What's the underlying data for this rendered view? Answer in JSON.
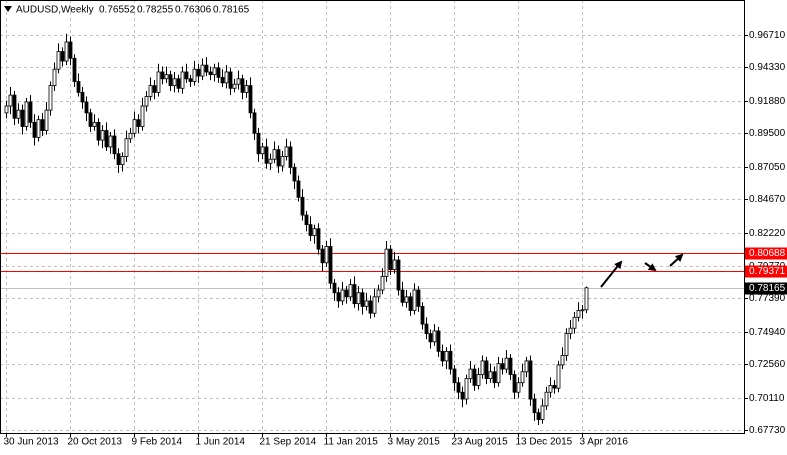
{
  "chart_data": {
    "type": "candlestick",
    "title": "AUDUSD,Weekly",
    "up_color": "#ffffff",
    "down_color": "#000000",
    "grid": true,
    "ylim": [
      0.6751,
      0.9928
    ],
    "yticks": [
      {
        "value": 0.9671,
        "label": "0.96710"
      },
      {
        "value": 0.9433,
        "label": "0.94330"
      },
      {
        "value": 0.9188,
        "label": "0.91880"
      },
      {
        "value": 0.895,
        "label": "0.89500"
      },
      {
        "value": 0.8705,
        "label": "0.87050"
      },
      {
        "value": 0.8467,
        "label": "0.84670"
      },
      {
        "value": 0.8222,
        "label": "0.82220"
      },
      {
        "value": 0.7977,
        "label": "0.79770"
      },
      {
        "value": 0.7739,
        "label": "0.77390"
      },
      {
        "value": 0.7494,
        "label": "0.74940"
      },
      {
        "value": 0.7256,
        "label": "0.72560"
      },
      {
        "value": 0.7011,
        "label": "0.70110"
      },
      {
        "value": 0.6773,
        "label": "0.67730"
      }
    ],
    "levels": [
      {
        "value": 0.80688,
        "color": "#ff0000"
      },
      {
        "value": 0.79371,
        "color": "#ff0000"
      }
    ],
    "categories": [
      "30 Jun 2013",
      null,
      null,
      null,
      null,
      null,
      null,
      null,
      null,
      null,
      null,
      null,
      null,
      null,
      null,
      null,
      "20 Oct 2013",
      null,
      null,
      null,
      null,
      null,
      null,
      null,
      null,
      null,
      null,
      null,
      null,
      null,
      null,
      null,
      "9 Feb 2014",
      null,
      null,
      null,
      null,
      null,
      null,
      null,
      null,
      null,
      null,
      null,
      null,
      null,
      null,
      null,
      "1 Jun 2014",
      null,
      null,
      null,
      null,
      null,
      null,
      null,
      null,
      null,
      null,
      null,
      null,
      null,
      null,
      null,
      "21 Sep 2014",
      null,
      null,
      null,
      null,
      null,
      null,
      null,
      null,
      null,
      null,
      null,
      null,
      null,
      null,
      null,
      "11 Jan 2015",
      null,
      null,
      null,
      null,
      null,
      null,
      null,
      null,
      null,
      null,
      null,
      null,
      null,
      null,
      null,
      "3 May 2015",
      null,
      null,
      null,
      null,
      null,
      null,
      null,
      null,
      null,
      null,
      null,
      null,
      null,
      null,
      null,
      "23 Aug 2015",
      null,
      null,
      null,
      null,
      null,
      null,
      null,
      null,
      null,
      null,
      null,
      null,
      null,
      null,
      null,
      "13 Dec 2015",
      null,
      null,
      null,
      null,
      null,
      null,
      null,
      null,
      null,
      null,
      null,
      null,
      null,
      null,
      null,
      "3 Apr 2016",
      null
    ],
    "open": [
      0.91,
      0.915,
      0.923,
      0.906,
      0.912,
      0.9,
      0.918,
      0.903,
      0.892,
      0.905,
      0.897,
      0.912,
      0.93,
      0.942,
      0.955,
      0.948,
      0.962,
      0.95,
      0.933,
      0.925,
      0.918,
      0.91,
      0.9,
      0.903,
      0.89,
      0.897,
      0.885,
      0.893,
      0.88,
      0.872,
      0.878,
      0.891,
      0.895,
      0.905,
      0.9,
      0.915,
      0.922,
      0.93,
      0.925,
      0.94,
      0.935,
      0.938,
      0.93,
      0.935,
      0.928,
      0.94,
      0.935,
      0.933,
      0.942,
      0.937,
      0.945,
      0.94,
      0.938,
      0.943,
      0.936,
      0.932,
      0.94,
      0.928,
      0.931,
      0.935,
      0.925,
      0.93,
      0.91,
      0.895,
      0.88,
      0.885,
      0.873,
      0.876,
      0.883,
      0.871,
      0.878,
      0.885,
      0.87,
      0.86,
      0.848,
      0.835,
      0.828,
      0.82,
      0.825,
      0.81,
      0.8,
      0.812,
      0.785,
      0.778,
      0.772,
      0.78,
      0.775,
      0.784,
      0.77,
      0.778,
      0.768,
      0.772,
      0.763,
      0.775,
      0.78,
      0.79,
      0.81,
      0.795,
      0.802,
      0.78,
      0.771,
      0.775,
      0.765,
      0.78,
      0.768,
      0.755,
      0.748,
      0.742,
      0.75,
      0.735,
      0.728,
      0.735,
      0.722,
      0.712,
      0.705,
      0.7,
      0.715,
      0.722,
      0.71,
      0.718,
      0.728,
      0.715,
      0.72,
      0.712,
      0.726,
      0.722,
      0.73,
      0.718,
      0.705,
      0.712,
      0.72,
      0.728,
      0.7,
      0.69,
      0.685,
      0.695,
      0.705,
      0.71,
      0.708,
      0.725,
      0.732,
      0.748,
      0.752,
      0.76,
      0.765,
      0.76552
    ],
    "high": [
      0.919,
      0.929,
      0.926,
      0.917,
      0.916,
      0.921,
      0.923,
      0.909,
      0.908,
      0.91,
      0.918,
      0.933,
      0.947,
      0.961,
      0.958,
      0.968,
      0.966,
      0.953,
      0.939,
      0.929,
      0.922,
      0.913,
      0.909,
      0.906,
      0.901,
      0.903,
      0.896,
      0.898,
      0.884,
      0.881,
      0.897,
      0.899,
      0.911,
      0.909,
      0.921,
      0.926,
      0.936,
      0.934,
      0.946,
      0.944,
      0.944,
      0.941,
      0.94,
      0.938,
      0.944,
      0.946,
      0.938,
      0.948,
      0.946,
      0.95,
      0.951,
      0.944,
      0.946,
      0.947,
      0.942,
      0.945,
      0.943,
      0.935,
      0.941,
      0.938,
      0.934,
      0.936,
      0.913,
      0.899,
      0.888,
      0.891,
      0.88,
      0.889,
      0.886,
      0.882,
      0.891,
      0.889,
      0.873,
      0.864,
      0.854,
      0.838,
      0.834,
      0.828,
      0.829,
      0.813,
      0.816,
      0.818,
      0.788,
      0.782,
      0.786,
      0.783,
      0.788,
      0.79,
      0.783,
      0.781,
      0.778,
      0.776,
      0.781,
      0.784,
      0.796,
      0.816,
      0.813,
      0.808,
      0.805,
      0.786,
      0.78,
      0.778,
      0.785,
      0.783,
      0.771,
      0.76,
      0.751,
      0.755,
      0.753,
      0.74,
      0.738,
      0.74,
      0.725,
      0.716,
      0.709,
      0.718,
      0.728,
      0.725,
      0.723,
      0.732,
      0.731,
      0.726,
      0.724,
      0.731,
      0.73,
      0.736,
      0.733,
      0.721,
      0.716,
      0.726,
      0.731,
      0.732,
      0.704,
      0.693,
      0.7,
      0.709,
      0.716,
      0.714,
      0.728,
      0.738,
      0.752,
      0.758,
      0.764,
      0.771,
      0.769,
      0.78255
    ],
    "low": [
      0.906,
      0.909,
      0.901,
      0.902,
      0.894,
      0.897,
      0.899,
      0.886,
      0.889,
      0.893,
      0.894,
      0.908,
      0.926,
      0.939,
      0.944,
      0.945,
      0.945,
      0.929,
      0.922,
      0.913,
      0.904,
      0.896,
      0.897,
      0.886,
      0.884,
      0.882,
      0.88,
      0.876,
      0.866,
      0.867,
      0.874,
      0.888,
      0.892,
      0.895,
      0.897,
      0.911,
      0.919,
      0.92,
      0.922,
      0.931,
      0.932,
      0.926,
      0.925,
      0.925,
      0.924,
      0.932,
      0.929,
      0.93,
      0.932,
      0.934,
      0.937,
      0.934,
      0.933,
      0.932,
      0.929,
      0.928,
      0.923,
      0.925,
      0.927,
      0.92,
      0.921,
      0.906,
      0.89,
      0.874,
      0.876,
      0.869,
      0.868,
      0.873,
      0.866,
      0.867,
      0.875,
      0.865,
      0.854,
      0.845,
      0.831,
      0.823,
      0.816,
      0.814,
      0.806,
      0.794,
      0.797,
      0.781,
      0.772,
      0.767,
      0.769,
      0.77,
      0.772,
      0.767,
      0.765,
      0.762,
      0.765,
      0.759,
      0.76,
      0.771,
      0.777,
      0.786,
      0.791,
      0.792,
      0.776,
      0.768,
      0.767,
      0.761,
      0.762,
      0.764,
      0.751,
      0.744,
      0.737,
      0.739,
      0.731,
      0.724,
      0.722,
      0.718,
      0.706,
      0.7,
      0.694,
      0.696,
      0.712,
      0.706,
      0.707,
      0.715,
      0.711,
      0.712,
      0.708,
      0.709,
      0.718,
      0.719,
      0.714,
      0.7,
      0.701,
      0.709,
      0.716,
      0.695,
      0.684,
      0.681,
      0.682,
      0.692,
      0.701,
      0.704,
      0.705,
      0.722,
      0.728,
      0.744,
      0.748,
      0.757,
      0.759,
      0.76306
    ],
    "close": [
      0.915,
      0.923,
      0.906,
      0.912,
      0.9,
      0.918,
      0.903,
      0.892,
      0.905,
      0.897,
      0.912,
      0.93,
      0.942,
      0.955,
      0.948,
      0.962,
      0.95,
      0.933,
      0.925,
      0.918,
      0.91,
      0.9,
      0.903,
      0.89,
      0.897,
      0.885,
      0.893,
      0.88,
      0.872,
      0.878,
      0.891,
      0.895,
      0.905,
      0.9,
      0.915,
      0.922,
      0.93,
      0.925,
      0.94,
      0.935,
      0.938,
      0.93,
      0.935,
      0.928,
      0.94,
      0.935,
      0.933,
      0.942,
      0.937,
      0.945,
      0.94,
      0.938,
      0.943,
      0.936,
      0.932,
      0.94,
      0.928,
      0.931,
      0.935,
      0.925,
      0.93,
      0.91,
      0.895,
      0.88,
      0.885,
      0.873,
      0.876,
      0.883,
      0.871,
      0.878,
      0.885,
      0.87,
      0.86,
      0.848,
      0.835,
      0.828,
      0.82,
      0.825,
      0.81,
      0.8,
      0.812,
      0.785,
      0.778,
      0.772,
      0.78,
      0.775,
      0.784,
      0.77,
      0.778,
      0.768,
      0.772,
      0.763,
      0.775,
      0.78,
      0.79,
      0.81,
      0.795,
      0.802,
      0.78,
      0.771,
      0.775,
      0.765,
      0.78,
      0.768,
      0.755,
      0.748,
      0.742,
      0.75,
      0.735,
      0.728,
      0.735,
      0.722,
      0.712,
      0.705,
      0.7,
      0.715,
      0.722,
      0.71,
      0.718,
      0.728,
      0.715,
      0.72,
      0.712,
      0.726,
      0.722,
      0.73,
      0.718,
      0.705,
      0.712,
      0.72,
      0.728,
      0.7,
      0.69,
      0.685,
      0.695,
      0.705,
      0.71,
      0.708,
      0.725,
      0.732,
      0.748,
      0.752,
      0.76,
      0.765,
      0.76552,
      0.78165
    ]
  }
}
